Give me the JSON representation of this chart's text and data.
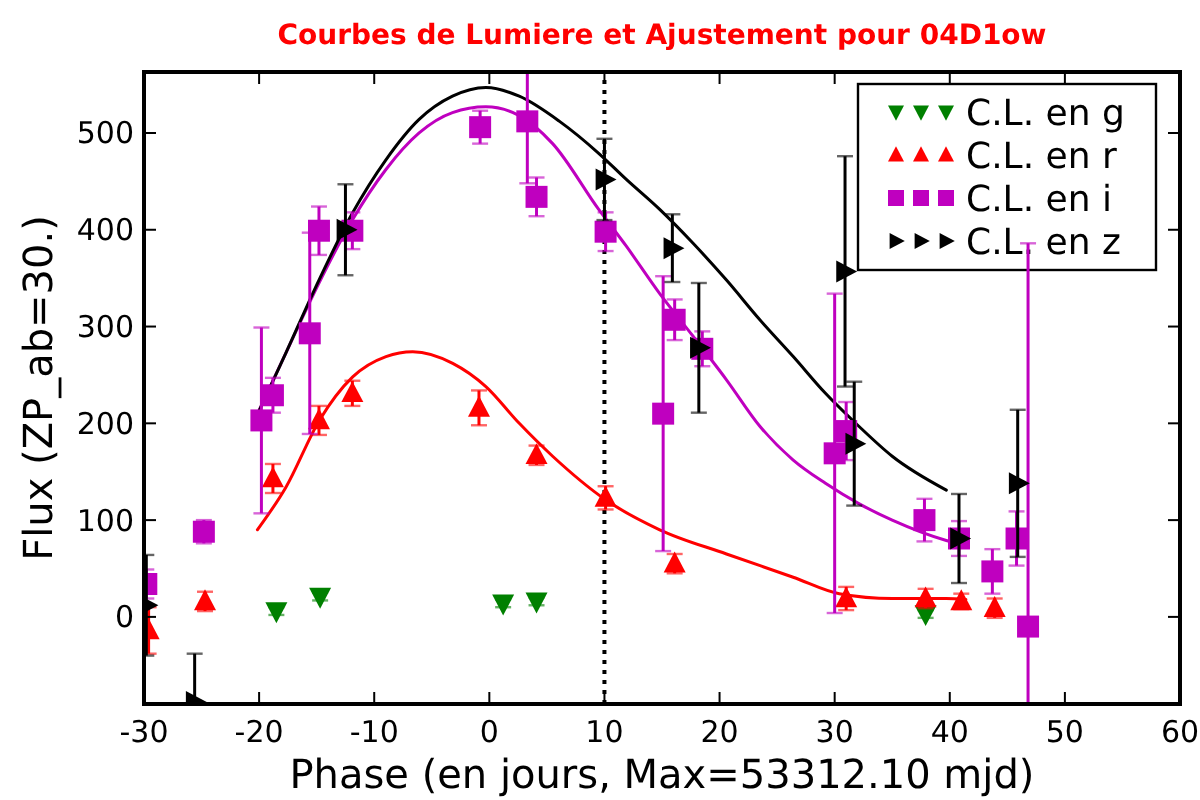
{
  "chart_data": {
    "type": "scatter",
    "title": "Courbes de Lumiere et Ajustement pour 04D1ow",
    "xlabel": "Phase (en jours, Max=53312.10 mjd)",
    "ylabel": "Flux (ZP_ab=30.)",
    "xlim": [
      -30,
      60
    ],
    "ylim": [
      -90,
      563
    ],
    "xticks": [
      -30,
      -20,
      -10,
      0,
      10,
      20,
      30,
      40,
      50,
      60
    ],
    "yticks": [
      0,
      100,
      200,
      300,
      400,
      500
    ],
    "legend": "top right",
    "ref_lines": [
      {
        "axis": "x",
        "value": 10,
        "color": "#000000",
        "line_style": "dotted"
      }
    ],
    "series": [
      {
        "type": "line",
        "color": "#ff0000",
        "x": [
          -20.15,
          -17.67,
          -14.77,
          -11.87,
          -8.98,
          -6.65,
          -3.18,
          -0.3,
          2.6,
          5.5,
          10.1,
          14.8,
          20.6,
          26.4,
          30.4,
          35,
          39.7,
          41.4
        ],
        "values": [
          90,
          134,
          203,
          248,
          269,
          274,
          262,
          238,
          200,
          166,
          121,
          90,
          65,
          41,
          24,
          19,
          19,
          18
        ]
      },
      {
        "type": "line",
        "color": "#bf00bf",
        "x": [
          -20.3,
          -17.7,
          -14.8,
          -11.9,
          -9,
          -6.1,
          -3.2,
          -0.3,
          2.6,
          5.5,
          9.5,
          11.9,
          14.8,
          17.7,
          20.6,
          23.5,
          26.4,
          29.2,
          32.1,
          35,
          39.7,
          41.4
        ],
        "values": [
          206,
          272,
          345,
          410,
          462,
          500,
          521,
          527,
          518,
          489,
          421,
          383,
          334,
          290,
          245,
          197,
          162,
          138,
          117,
          100,
          79,
          74
        ]
      },
      {
        "type": "line",
        "color": "#000000",
        "x": [
          -20.3,
          -17.7,
          -14.8,
          -11.9,
          -9,
          -6.1,
          -3.2,
          -0.3,
          2.6,
          6.1,
          9.5,
          11.9,
          14.8,
          17.7,
          20.6,
          23.5,
          26.4,
          29.2,
          32.1,
          35,
          39.7
        ],
        "values": [
          205,
          272,
          348,
          417,
          472,
          514,
          538,
          547,
          538,
          512,
          479,
          452,
          421,
          386,
          348,
          307,
          269,
          231,
          197,
          166,
          131
        ]
      },
      {
        "name": "C.L. en g",
        "marker": "triangle-down",
        "color": "#008000",
        "x": [
          -18.5,
          -14.7,
          1.2,
          4.1,
          37.9
        ],
        "values": [
          6,
          21,
          14,
          16,
          3
        ],
        "errors": [
          4,
          4,
          4,
          4,
          4
        ]
      },
      {
        "name": "C.L. en r",
        "marker": "triangle",
        "color": "#ff0000",
        "x": [
          -29.6,
          -24.7,
          -18.8,
          -14.8,
          -11.9,
          -0.9,
          4.1,
          10.1,
          16.1,
          31.0,
          37.9,
          41.0,
          43.9
        ],
        "values": [
          -14,
          16,
          143,
          203,
          231,
          216,
          167,
          123,
          55,
          19,
          19,
          16,
          9
        ],
        "errors": [
          24,
          10,
          15,
          15,
          13,
          18,
          10,
          12,
          10,
          12,
          10,
          8,
          10
        ]
      },
      {
        "name": "C.L. en i",
        "marker": "square",
        "color": "#bf00bf",
        "x": [
          -29.8,
          -24.8,
          -19.8,
          -18.8,
          -15.6,
          -14.8,
          -11.9,
          -0.8,
          3.3,
          4.1,
          10.1,
          15.1,
          16.1,
          18.5,
          30.0,
          31.0,
          37.8,
          40.8,
          43.7,
          45.8,
          46.8
        ],
        "values": [
          34,
          88,
          203,
          229,
          293,
          399,
          399,
          506,
          512,
          434,
          398,
          210,
          307,
          277,
          169,
          192,
          100,
          81,
          47,
          81,
          -10
        ],
        "errors": [
          15,
          12,
          96,
          18,
          104,
          25,
          19,
          17,
          [
            448,
            563
          ],
          20,
          20,
          142,
          21,
          18,
          165,
          30,
          22,
          18,
          23,
          28,
          [
            -90,
            386
          ]
        ]
      },
      {
        "name": "C.L. en z",
        "marker": "triangle-right",
        "color": "#000000",
        "x": [
          -29.8,
          -25.6,
          -12.5,
          10.0,
          15.9,
          18.2,
          30.9,
          31.7,
          40.8,
          45.9
        ],
        "values": [
          12,
          -88,
          400,
          452,
          381,
          278,
          357,
          179,
          81,
          138
        ],
        "errors": [
          52,
          [
            -90,
            -38
          ],
          47,
          42,
          35,
          67,
          119,
          64,
          46,
          76
        ]
      }
    ]
  }
}
